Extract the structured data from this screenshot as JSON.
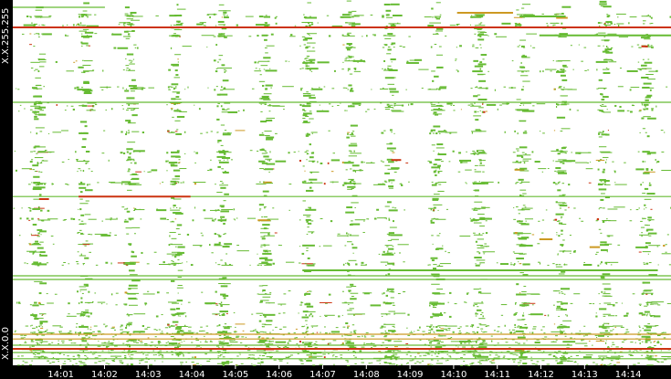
{
  "chart_data": {
    "type": "scatter",
    "title": "",
    "xlabel": "",
    "ylabel": "",
    "y_axis_labels": {
      "top": "X.X.255.255",
      "bottom": "X.X.0.0"
    },
    "x_ticks": [
      "14:01",
      "14:02",
      "14:03",
      "14:04",
      "14:05",
      "14:06",
      "14:07",
      "14:08",
      "14:09",
      "14:10",
      "14:11",
      "14:12",
      "14:13",
      "14:14"
    ],
    "grid": false,
    "legend": "none",
    "colors": {
      "low": "#66bb33",
      "mid": "#cc9922",
      "high": "#cc3311",
      "background": "#ffffff",
      "frame": "#000000"
    },
    "horizontal_lines": [
      {
        "y": 0.98,
        "x": [
          0.0,
          0.14
        ],
        "level": "low"
      },
      {
        "y": 0.925,
        "x": [
          0.0,
          1.0
        ],
        "level": "high"
      },
      {
        "y": 0.72,
        "x": [
          0.0,
          1.0
        ],
        "level": "low"
      },
      {
        "y": 0.462,
        "x": [
          0.0,
          1.0
        ],
        "level": "low"
      },
      {
        "y": 0.245,
        "x": [
          0.0,
          1.0
        ],
        "level": "low"
      },
      {
        "y": 0.235,
        "x": [
          0.0,
          1.0
        ],
        "level": "low"
      },
      {
        "y": 0.085,
        "x": [
          0.0,
          1.0
        ],
        "level": "mid"
      },
      {
        "y": 0.072,
        "x": [
          0.0,
          1.0
        ],
        "level": "mid"
      },
      {
        "y": 0.055,
        "x": [
          0.0,
          0.85
        ],
        "level": "low"
      },
      {
        "y": 0.045,
        "x": [
          0.0,
          1.0
        ],
        "level": "high"
      },
      {
        "y": 0.035,
        "x": [
          0.0,
          1.0
        ],
        "level": "low"
      },
      {
        "y": 0.018,
        "x": [
          0.0,
          1.0
        ],
        "level": "low"
      }
    ],
    "segments": [
      {
        "y": 0.965,
        "x": [
          0.675,
          0.76
        ],
        "level": "mid"
      },
      {
        "y": 0.955,
        "x": [
          0.77,
          0.84
        ],
        "level": "low"
      },
      {
        "y": 0.903,
        "x": [
          0.8,
          1.0
        ],
        "level": "low"
      },
      {
        "y": 0.462,
        "x": [
          0.1,
          0.27
        ],
        "level": "high"
      },
      {
        "y": 0.26,
        "x": [
          0.44,
          0.98
        ],
        "level": "low"
      },
      {
        "y": 0.873,
        "x": [
          0.955,
          0.965
        ],
        "level": "high"
      },
      {
        "y": 0.562,
        "x": [
          0.575,
          0.59
        ],
        "level": "high"
      },
      {
        "y": 0.345,
        "x": [
          0.8,
          0.82
        ],
        "level": "mid"
      },
      {
        "y": 0.455,
        "x": [
          0.04,
          0.055
        ],
        "level": "high"
      }
    ],
    "band_rows": [
      0.958,
      0.935,
      0.905,
      0.875,
      0.835,
      0.81,
      0.76,
      0.715,
      0.7,
      0.64,
      0.585,
      0.56,
      0.535,
      0.5,
      0.43,
      0.4,
      0.36,
      0.33,
      0.31,
      0.28,
      0.2,
      0.17,
      0.14,
      0.11,
      0.09,
      0.065,
      0.04,
      0.025
    ],
    "dense_columns": [
      0.035,
      0.105,
      0.175,
      0.245,
      0.315,
      0.38,
      0.445,
      0.51,
      0.57,
      0.64,
      0.705,
      0.77,
      0.83,
      0.895,
      0.96
    ]
  }
}
